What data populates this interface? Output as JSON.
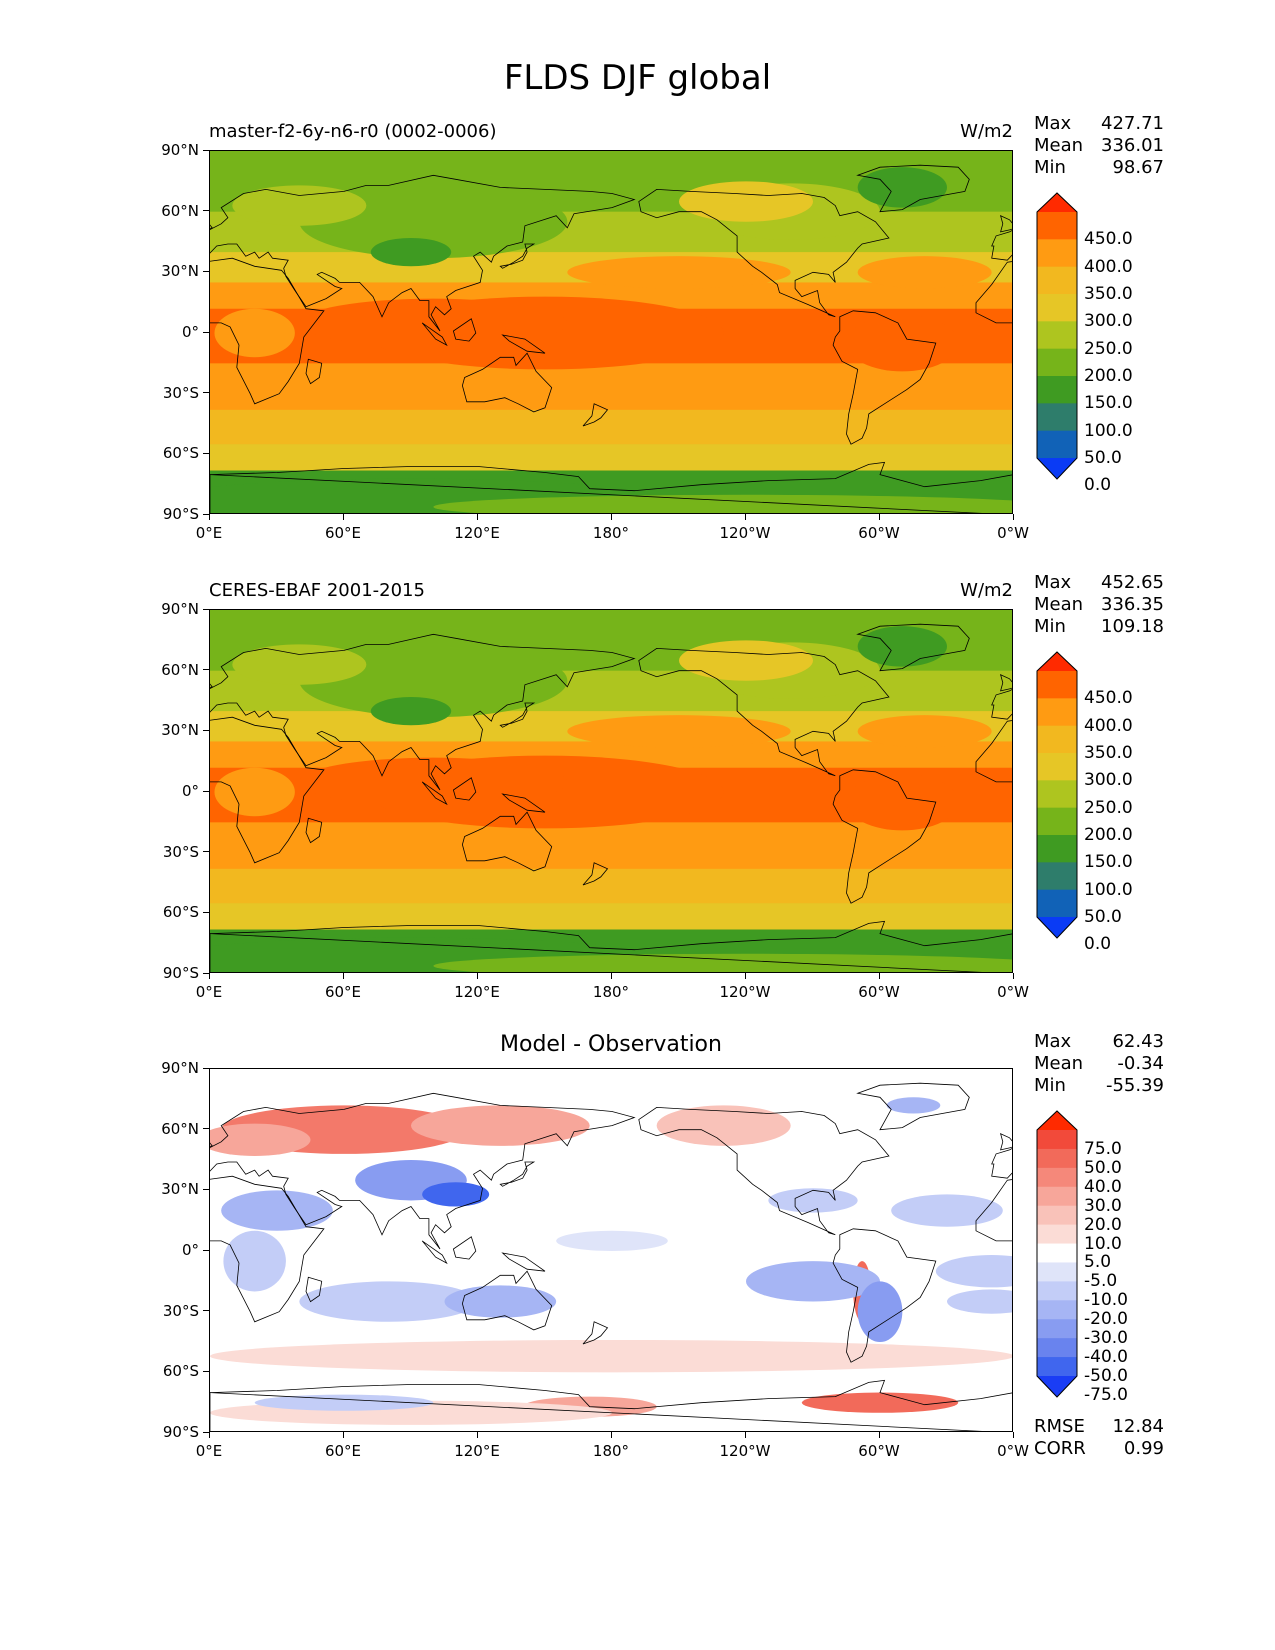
{
  "title": "FLDS DJF global",
  "panels": [
    {
      "label": "master-f2-6y-n6-r0 (0002-0006)",
      "units": "W/m2",
      "stats": [
        {
          "k": "Max",
          "v": "427.71"
        },
        {
          "k": "Mean",
          "v": "336.01"
        },
        {
          "k": "Min",
          "v": "98.67"
        }
      ],
      "colorbar_labels": [
        "450.0",
        "400.0",
        "350.0",
        "300.0",
        "250.0",
        "200.0",
        "150.0",
        "100.0",
        "50.0",
        "0.0"
      ],
      "colorbar_colors": [
        "#ff2a00",
        "#ff6400",
        "#ff9b12",
        "#f2b81f",
        "#e6c626",
        "#aec51f",
        "#76b41a",
        "#3f9b22",
        "#2e7d6b",
        "#1162b7",
        "#0a3bf5"
      ]
    },
    {
      "label": "CERES-EBAF 2001-2015",
      "units": "W/m2",
      "stats": [
        {
          "k": "Max",
          "v": "452.65"
        },
        {
          "k": "Mean",
          "v": "336.35"
        },
        {
          "k": "Min",
          "v": "109.18"
        }
      ],
      "colorbar_labels": [
        "450.0",
        "400.0",
        "350.0",
        "300.0",
        "250.0",
        "200.0",
        "150.0",
        "100.0",
        "50.0",
        "0.0"
      ],
      "colorbar_colors": [
        "#ff2a00",
        "#ff6400",
        "#ff9b12",
        "#f2b81f",
        "#e6c626",
        "#aec51f",
        "#76b41a",
        "#3f9b22",
        "#2e7d6b",
        "#1162b7",
        "#0a3bf5"
      ]
    },
    {
      "label": "Model - Observation",
      "units": "",
      "stats": [
        {
          "k": "Max",
          "v": "62.43"
        },
        {
          "k": "Mean",
          "v": "-0.34"
        },
        {
          "k": "Min",
          "v": "-55.39"
        }
      ],
      "extra_stats": [
        {
          "k": "RMSE",
          "v": "12.84"
        },
        {
          "k": "CORR",
          "v": "0.99"
        }
      ],
      "colorbar_labels": [
        "75.0",
        "50.0",
        "40.0",
        "30.0",
        "20.0",
        "10.0",
        "5.0",
        "-5.0",
        "-10.0",
        "-20.0",
        "-30.0",
        "-40.0",
        "-50.0",
        "-75.0"
      ],
      "colorbar_colors": [
        "#ff2a00",
        "#f24a3a",
        "#f26a5a",
        "#f5887a",
        "#f7a69a",
        "#f9c2b9",
        "#fbdcd6",
        "#ffffff",
        "#dfe4f9",
        "#c3cdf7",
        "#a6b5f4",
        "#889cf1",
        "#6983ee",
        "#4066ee",
        "#1a3df5"
      ]
    }
  ],
  "x_ticks": [
    "0°E",
    "60°E",
    "120°E",
    "180°",
    "120°W",
    "60°W",
    "0°W"
  ],
  "y_ticks": [
    "90°N",
    "60°N",
    "30°N",
    "0°",
    "30°S",
    "60°S",
    "90°S"
  ],
  "chart_data": [
    {
      "type": "heatmap",
      "title": "FLDS DJF global",
      "subtitle": "master-f2-6y-n6-r0 (0002-0006)",
      "units": "W/m2",
      "projection": "plate carree (0°E to 0°W)",
      "lat_range": [
        -90,
        90
      ],
      "lon_range": [
        0,
        360
      ],
      "levels": [
        0,
        50,
        100,
        150,
        200,
        250,
        300,
        350,
        400,
        450
      ],
      "zonal_mean_approx": {
        "lat": [
          90,
          60,
          30,
          0,
          -30,
          -60,
          -90
        ],
        "value": [
          190,
          230,
          330,
          400,
          360,
          300,
          170
        ]
      },
      "stats": {
        "max": 427.71,
        "mean": 336.01,
        "min": 98.67
      }
    },
    {
      "type": "heatmap",
      "subtitle": "CERES-EBAF 2001-2015",
      "units": "W/m2",
      "lat_range": [
        -90,
        90
      ],
      "lon_range": [
        0,
        360
      ],
      "levels": [
        0,
        50,
        100,
        150,
        200,
        250,
        300,
        350,
        400,
        450
      ],
      "zonal_mean_approx": {
        "lat": [
          90,
          60,
          30,
          0,
          -30,
          -60,
          -90
        ],
        "value": [
          190,
          225,
          330,
          405,
          360,
          295,
          165
        ]
      },
      "stats": {
        "max": 452.65,
        "mean": 336.35,
        "min": 109.18
      }
    },
    {
      "type": "heatmap",
      "subtitle": "Model - Observation",
      "units": "W/m2",
      "lat_range": [
        -90,
        90
      ],
      "lon_range": [
        0,
        360
      ],
      "levels": [
        -75,
        -50,
        -40,
        -30,
        -20,
        -10,
        -5,
        5,
        10,
        20,
        30,
        40,
        50,
        75
      ],
      "zonal_mean_approx": {
        "lat": [
          90,
          60,
          30,
          0,
          -30,
          -60,
          -90
        ],
        "value": [
          -5,
          20,
          -10,
          0,
          -10,
          10,
          10
        ]
      },
      "stats": {
        "max": 62.43,
        "mean": -0.34,
        "min": -55.39,
        "rmse": 12.84,
        "corr": 0.99
      }
    }
  ]
}
